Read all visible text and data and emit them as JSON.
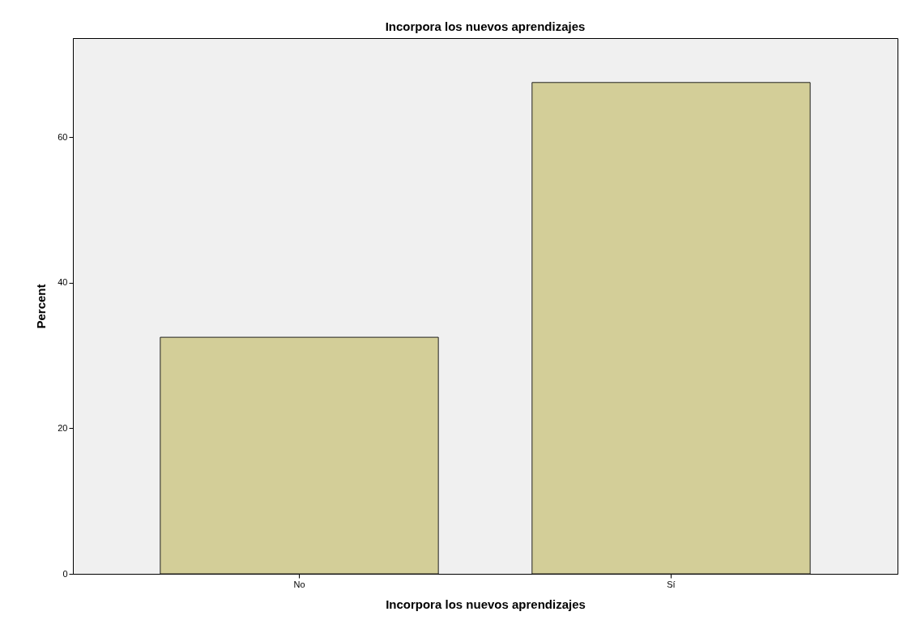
{
  "chart_data": {
    "type": "bar",
    "title": "Incorpora los nuevos aprendizajes",
    "xlabel": "Incorpora los nuevos aprendizajes",
    "ylabel": "Percent",
    "categories": [
      "No",
      "Sí"
    ],
    "values": [
      32.5,
      67.5
    ],
    "color": "#d3ce98",
    "ylim": [
      0,
      73.6
    ],
    "yticks": [
      0,
      20,
      40,
      60
    ],
    "grid": false
  }
}
